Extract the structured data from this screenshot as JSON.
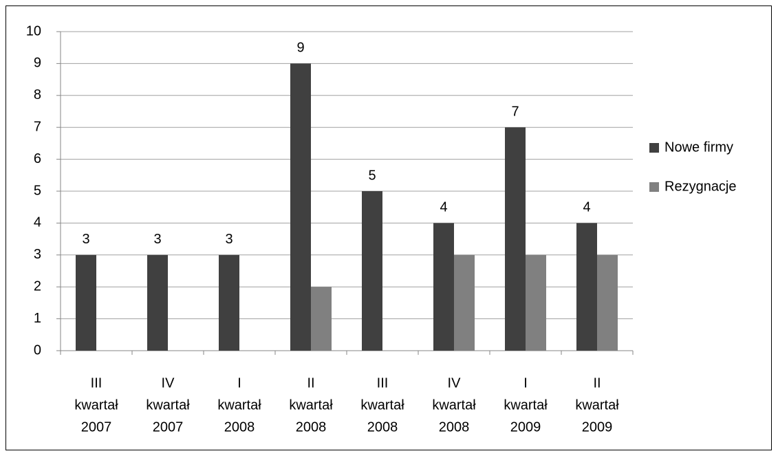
{
  "chart_data": {
    "type": "bar",
    "categories": [
      [
        "III",
        "kwartał",
        "2007"
      ],
      [
        "IV",
        "kwartał",
        "2007"
      ],
      [
        "I",
        "kwartał",
        "2008"
      ],
      [
        "II",
        "kwartał",
        "2008"
      ],
      [
        "III",
        "kwartał",
        "2008"
      ],
      [
        "IV",
        "kwartał",
        "2008"
      ],
      [
        "I",
        "kwartał",
        "2009"
      ],
      [
        "II",
        "kwartał",
        "2009"
      ]
    ],
    "series": [
      {
        "name": "Nowe firmy",
        "color": "#404040",
        "values": [
          3,
          3,
          3,
          9,
          5,
          4,
          7,
          4
        ],
        "data_labels": true
      },
      {
        "name": "Rezygnacje",
        "color": "#808080",
        "values": [
          0,
          0,
          0,
          2,
          0,
          3,
          3,
          3
        ],
        "data_labels": false
      }
    ],
    "ylim": [
      0,
      10
    ],
    "yticks": [
      0,
      1,
      2,
      3,
      4,
      5,
      6,
      7,
      8,
      9,
      10
    ],
    "grid": true,
    "legend": "right"
  }
}
